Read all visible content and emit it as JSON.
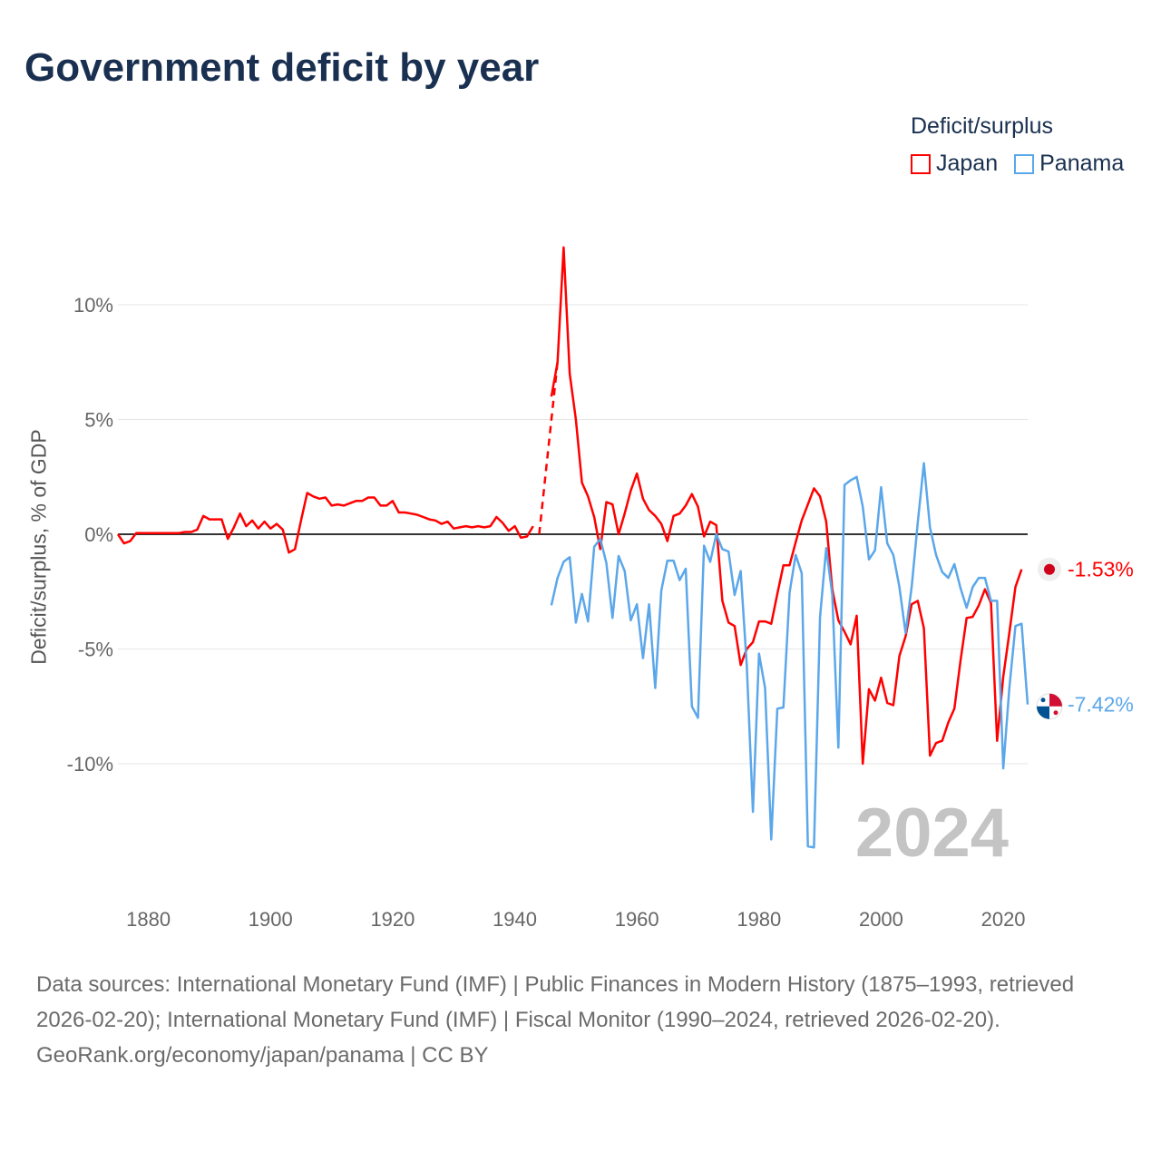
{
  "title": "Government deficit by year",
  "legend": {
    "title": "Deficit/surplus",
    "items": [
      {
        "label": "Japan",
        "color": "#ff0000"
      },
      {
        "label": "Panama",
        "color": "#5ba7ea"
      }
    ]
  },
  "year_watermark": "2024",
  "end_labels": {
    "japan": "-1.53%",
    "panama": "-7.42%"
  },
  "footer": {
    "sources": "Data sources: International Monetary Fund (IMF) | Public Finances in Modern History (1875–1993, retrieved 2026-02-20); International Monetary Fund (IMF) | Fiscal Monitor (1990–2024, retrieved 2026-02-20).",
    "credit": "GeoRank.org/economy/japan/panama | CC BY"
  },
  "chart_data": {
    "type": "line",
    "title": "Government deficit by year",
    "xlabel": "",
    "ylabel": "Deficit/surplus, % of GDP",
    "xlim": [
      1875,
      2024
    ],
    "ylim": [
      -15,
      13
    ],
    "x_ticks": [
      1880,
      1900,
      1920,
      1940,
      1960,
      1980,
      2000,
      2020
    ],
    "y_ticks": [
      {
        "v": 10,
        "label": "10%"
      },
      {
        "v": 5,
        "label": "5%"
      },
      {
        "v": 0,
        "label": "0%"
      },
      {
        "v": -5,
        "label": "-5%"
      },
      {
        "v": -10,
        "label": "-10%"
      }
    ],
    "grid": true,
    "legend_position": "top-right",
    "series": [
      {
        "name": "Japan",
        "color": "#ff0000",
        "dashed_gap": [
          1944,
          1947
        ],
        "start_year": 1875,
        "values": [
          0.0,
          -0.4,
          -0.3,
          0.05,
          0.05,
          0.05,
          0.05,
          0.05,
          0.05,
          0.05,
          0.05,
          0.1,
          0.1,
          0.2,
          0.8,
          0.65,
          0.65,
          0.65,
          -0.2,
          0.3,
          0.9,
          0.35,
          0.6,
          0.25,
          0.55,
          0.25,
          0.45,
          0.2,
          -0.8,
          -0.65,
          0.6,
          1.8,
          1.65,
          1.55,
          1.6,
          1.25,
          1.3,
          1.25,
          1.35,
          1.45,
          1.45,
          1.6,
          1.6,
          1.25,
          1.25,
          1.45,
          0.95,
          0.95,
          0.9,
          0.85,
          0.75,
          0.65,
          0.6,
          0.45,
          0.55,
          0.25,
          0.3,
          0.35,
          0.3,
          0.35,
          0.3,
          0.35,
          0.75,
          0.5,
          0.15,
          0.35,
          -0.15,
          -0.1,
          0.35,
          null,
          null,
          6.0,
          7.5,
          12.5,
          7.0,
          5.0,
          2.25,
          1.65,
          0.75,
          -0.65,
          1.4,
          1.3,
          0.0,
          0.9,
          1.9,
          2.65,
          1.55,
          1.05,
          0.8,
          0.45,
          -0.3,
          0.8,
          0.9,
          1.25,
          1.75,
          1.2,
          -0.1,
          0.55,
          0.4,
          -2.9,
          -3.85,
          -4.0,
          -5.7,
          -5.0,
          -4.7,
          -3.8,
          -3.8,
          -3.9,
          -2.6,
          -1.35,
          -1.35,
          -0.35,
          0.6,
          1.3,
          2.0,
          1.65,
          0.55,
          -2.4,
          -3.75,
          -4.25,
          -4.8,
          -3.55,
          -10.0,
          -6.75,
          -7.25,
          -6.25,
          -7.35,
          -7.45,
          -5.3,
          -4.45,
          -3.05,
          -2.9,
          -4.1,
          -9.65,
          -9.1,
          -9.0,
          -8.2,
          -7.6,
          -5.5,
          -3.65,
          -3.6,
          -3.1,
          -2.4,
          -3.0,
          -9.0,
          -6.2,
          -4.3,
          -2.3,
          -1.53
        ]
      },
      {
        "name": "Panama",
        "color": "#5ba7ea",
        "start_year": 1946,
        "values": [
          -3.1,
          -1.9,
          -1.2,
          -1.0,
          -3.85,
          -2.6,
          -3.8,
          -0.55,
          -0.2,
          -1.25,
          -3.65,
          -0.95,
          -1.6,
          -3.75,
          -3.05,
          -5.4,
          -3.05,
          -6.7,
          -2.45,
          -1.15,
          -1.15,
          -2.0,
          -1.5,
          -7.5,
          -8.0,
          -0.5,
          -1.2,
          0.0,
          -0.65,
          -0.75,
          -2.65,
          -1.6,
          -5.7,
          -12.1,
          -5.2,
          -6.7,
          -13.3,
          -7.6,
          -7.55,
          -2.55,
          -0.9,
          -1.7,
          -13.6,
          -13.65,
          -3.6,
          -0.6,
          -2.65,
          -9.3,
          2.15,
          2.35,
          2.5,
          1.2,
          -1.1,
          -0.7,
          2.05,
          -0.4,
          -0.9,
          -2.3,
          -4.3,
          -2.3,
          0.5,
          3.1,
          0.3,
          -0.9,
          -1.65,
          -1.9,
          -1.3,
          -2.35,
          -3.2,
          -2.3,
          -1.9,
          -1.9,
          -2.9,
          -2.9,
          -10.2,
          -6.7,
          -4.0,
          -3.9,
          -7.42
        ]
      }
    ]
  }
}
